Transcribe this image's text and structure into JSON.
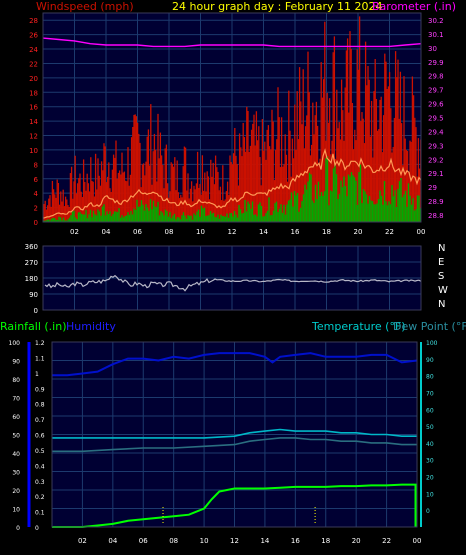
{
  "colors": {
    "background": "#000000",
    "plot_bg": "#000033",
    "grid": "#1c3a6e",
    "wind_gust": "#cc1100",
    "wind_avg": "#00aa00",
    "wind_smooth": "#ff9955",
    "barometer": "#ff00ff",
    "direction": "#b8b8c8",
    "humidity": "#0010cc",
    "temperature": "#00b8c8",
    "dew_point": "#2a6e80",
    "rainfall": "#00ff00",
    "axis_left_bottom": "#0000ff",
    "axis_right_bottom": "#00cccc",
    "tick_text": "#ffffff",
    "yellow": "#ffff00"
  },
  "header": {
    "wind_label": "Windspeed (mph)",
    "title": "24 hour graph day : February 11 2024",
    "baro_label": "Barometer (.in)"
  },
  "legend2": {
    "rain_label": "Rainfall (.in)",
    "humidity_label": "Humidity",
    "temp_label": "Temperature (°F)",
    "dew_label": "Dew Point (°F)"
  },
  "x_ticks": [
    "02",
    "04",
    "06",
    "08",
    "10",
    "12",
    "14",
    "16",
    "18",
    "20",
    "22",
    "00"
  ],
  "chart_data": [
    {
      "type": "area",
      "name": "wind-barometer",
      "x_unit": "hours",
      "x_range": [
        0,
        24
      ],
      "y_left": {
        "label": "Windspeed (mph)",
        "ticks": [
          "0",
          "2",
          "4",
          "6",
          "8",
          "10",
          "12",
          "14",
          "16",
          "18",
          "20",
          "22",
          "24",
          "26",
          "28"
        ],
        "range": [
          0,
          29
        ]
      },
      "y_right": {
        "label": "Barometer (.in)",
        "ticks": [
          "28.8",
          "28.9",
          "29",
          "29.1",
          "29.2",
          "29.3",
          "29.4",
          "29.5",
          "29.6",
          "29.7",
          "29.8",
          "29.9",
          "30",
          "30.1",
          "30.2"
        ],
        "range": [
          28.75,
          30.25
        ]
      },
      "series": [
        {
          "name": "Gust",
          "x": [
            0,
            0.5,
            1,
            1.5,
            2,
            2.5,
            3,
            3.5,
            4,
            4.5,
            5,
            5.5,
            6,
            6.5,
            7,
            7.5,
            8,
            8.5,
            9,
            9.5,
            10,
            10.5,
            11,
            11.5,
            12,
            12.5,
            13,
            13.5,
            14,
            14.5,
            15,
            15.5,
            16,
            16.5,
            17,
            17.5,
            18,
            18.5,
            19,
            19.5,
            20,
            20.5,
            21,
            21.5,
            22,
            22.5,
            23,
            23.5,
            24
          ],
          "values": [
            3,
            5,
            6,
            4,
            8,
            7,
            9,
            8,
            12,
            10,
            9,
            11,
            14,
            12,
            15,
            11,
            9,
            8,
            10,
            7,
            11,
            9,
            8,
            7,
            12,
            11,
            14,
            13,
            12,
            14,
            16,
            15,
            18,
            20,
            22,
            21,
            26,
            24,
            20,
            23,
            25,
            22,
            19,
            21,
            24,
            20,
            18,
            17,
            15
          ]
        },
        {
          "name": "Average",
          "x": [
            0,
            0.5,
            1,
            1.5,
            2,
            2.5,
            3,
            3.5,
            4,
            4.5,
            5,
            5.5,
            6,
            6.5,
            7,
            7.5,
            8,
            8.5,
            9,
            9.5,
            10,
            10.5,
            11,
            11.5,
            12,
            12.5,
            13,
            13.5,
            14,
            14.5,
            15,
            15.5,
            16,
            16.5,
            17,
            17.5,
            18,
            18.5,
            19,
            19.5,
            20,
            20.5,
            21,
            21.5,
            22,
            22.5,
            23,
            23.5,
            24
          ],
          "values": [
            0.3,
            0.5,
            1,
            0.5,
            1.5,
            1,
            2,
            1.5,
            3,
            2,
            1.5,
            2.5,
            3,
            2.5,
            3.5,
            2,
            1.5,
            1,
            1.5,
            1,
            2,
            1.5,
            1,
            1,
            2,
            2,
            3,
            2.5,
            2.5,
            3,
            3.5,
            3,
            4,
            5,
            6,
            5.5,
            8,
            7,
            6,
            6.5,
            7,
            6,
            5.5,
            6,
            6.5,
            5.5,
            5,
            4.5,
            4
          ]
        },
        {
          "name": "Smoothed",
          "x": [
            0,
            0.5,
            1,
            1.5,
            2,
            2.5,
            3,
            3.5,
            4,
            4.5,
            5,
            5.5,
            6,
            6.5,
            7,
            7.5,
            8,
            8.5,
            9,
            9.5,
            10,
            10.5,
            11,
            11.5,
            12,
            12.5,
            13,
            13.5,
            14,
            14.5,
            15,
            15.5,
            16,
            16.5,
            17,
            17.5,
            18,
            18.5,
            19,
            19.5,
            20,
            20.5,
            21,
            21.5,
            22,
            22.5,
            23,
            23.5,
            24
          ],
          "values": [
            0.5,
            0.8,
            1.2,
            1,
            2,
            1.8,
            2.5,
            2.2,
            3.5,
            3,
            2.6,
            3.4,
            4.2,
            3.8,
            4.5,
            3.5,
            2.8,
            2.4,
            2.8,
            2.2,
            3,
            2.6,
            2.2,
            2,
            3.2,
            3.1,
            4.2,
            3.9,
            3.8,
            4.3,
            5,
            4.8,
            5.8,
            6.8,
            7.8,
            7.4,
            9.5,
            8.8,
            7.8,
            8.2,
            8.6,
            7.8,
            7.2,
            7.6,
            8.1,
            7.2,
            6.6,
            6.1,
            5.6
          ]
        },
        {
          "name": "Barometer",
          "axis": "right",
          "x": [
            0,
            1,
            2,
            3,
            4,
            5,
            6,
            7,
            8,
            9,
            10,
            11,
            12,
            13,
            14,
            15,
            16,
            17,
            18,
            19,
            20,
            21,
            22,
            23,
            24
          ],
          "values": [
            30.07,
            30.06,
            30.05,
            30.03,
            30.02,
            30.02,
            30.02,
            30.01,
            30.01,
            30.01,
            30.02,
            30.02,
            30.02,
            30.02,
            30.02,
            30.01,
            30.01,
            30.01,
            30.01,
            30.01,
            30.01,
            30.01,
            30.01,
            30.02,
            30.03
          ]
        }
      ]
    },
    {
      "type": "line",
      "name": "wind-direction",
      "x_range": [
        0,
        24
      ],
      "y": {
        "ticks": [
          "0",
          "90",
          "180",
          "270",
          "360"
        ],
        "range": [
          0,
          360
        ],
        "compass": [
          "N",
          "W",
          "S",
          "E",
          "N"
        ]
      },
      "series": [
        {
          "name": "Direction",
          "x": [
            0,
            0.5,
            1,
            1.5,
            2,
            2.5,
            3,
            3.5,
            4,
            4.5,
            5,
            5.5,
            6,
            6.5,
            7,
            7.5,
            8,
            8.5,
            9,
            9.5,
            10,
            10.5,
            11,
            12,
            13,
            14,
            15,
            16,
            17,
            18,
            19,
            20,
            21,
            22,
            23,
            24
          ],
          "values": [
            150,
            130,
            145,
            125,
            150,
            140,
            155,
            160,
            165,
            200,
            170,
            140,
            150,
            135,
            150,
            140,
            148,
            135,
            120,
            140,
            150,
            165,
            170,
            162,
            165,
            160,
            170,
            162,
            165,
            160,
            168,
            162,
            168,
            160,
            165,
            165
          ]
        }
      ]
    },
    {
      "type": "line",
      "name": "rain-humidity-temperature",
      "x_range": [
        0,
        24
      ],
      "y_left_outer": {
        "label": "Humidity",
        "ticks": [
          "0",
          "10",
          "20",
          "30",
          "40",
          "50",
          "60",
          "70",
          "80",
          "90",
          "100"
        ],
        "range": [
          0,
          100
        ]
      },
      "y_left_inner": {
        "label": "Rainfall (.in)",
        "ticks": [
          "0",
          "0.1",
          "0.2",
          "0.3",
          "0.4",
          "0.5",
          "0.6",
          "0.7",
          "0.8",
          "0.9",
          "1",
          "1.1",
          "1.2"
        ],
        "range": [
          0,
          1.2
        ]
      },
      "y_right": {
        "label": "Temperature (°F)",
        "ticks": [
          "0",
          "10",
          "20",
          "30",
          "40",
          "50",
          "60",
          "70",
          "80",
          "90",
          "100"
        ],
        "range": [
          -10,
          100
        ]
      },
      "series": [
        {
          "name": "Humidity",
          "x": [
            0,
            1,
            2,
            3,
            4,
            5,
            6,
            7,
            8,
            9,
            10,
            11,
            12,
            13,
            14,
            14.5,
            15,
            16,
            17,
            18,
            19,
            20,
            21,
            22,
            22.5,
            23,
            24
          ],
          "values": [
            82,
            82,
            83,
            84,
            88,
            91,
            91,
            90,
            92,
            91,
            93,
            94,
            94,
            94,
            92,
            89,
            92,
            93,
            94,
            92,
            92,
            92,
            93,
            93,
            91,
            89,
            90
          ]
        },
        {
          "name": "Rainfall",
          "x": [
            0,
            1,
            2,
            3,
            4,
            5,
            6,
            7,
            8,
            9,
            10,
            10.5,
            11,
            12,
            13,
            14,
            15,
            16,
            17,
            18,
            19,
            20,
            21,
            22,
            23,
            23.9
          ],
          "values": [
            0,
            0,
            0,
            0.01,
            0.02,
            0.04,
            0.05,
            0.06,
            0.07,
            0.08,
            0.12,
            0.18,
            0.23,
            0.25,
            0.25,
            0.25,
            0.255,
            0.26,
            0.26,
            0.26,
            0.265,
            0.265,
            0.27,
            0.27,
            0.275,
            0.275
          ]
        },
        {
          "name": "Temperature",
          "x": [
            0,
            2,
            4,
            6,
            8,
            10,
            12,
            13,
            14,
            15,
            16,
            17,
            18,
            19,
            20,
            21,
            22,
            23,
            24
          ],
          "values": [
            43,
            43,
            43,
            43,
            43,
            43,
            44,
            46,
            47,
            48,
            47,
            47,
            47,
            46,
            46,
            45,
            45,
            44,
            44
          ]
        },
        {
          "name": "Dew Point",
          "x": [
            0,
            2,
            4,
            6,
            8,
            10,
            12,
            13,
            14,
            15,
            16,
            17,
            18,
            19,
            20,
            21,
            22,
            23,
            24
          ],
          "values": [
            35,
            35,
            36,
            37,
            37,
            38,
            39,
            41,
            42,
            43,
            43,
            42,
            42,
            41,
            41,
            40,
            40,
            39,
            39
          ]
        }
      ]
    }
  ]
}
